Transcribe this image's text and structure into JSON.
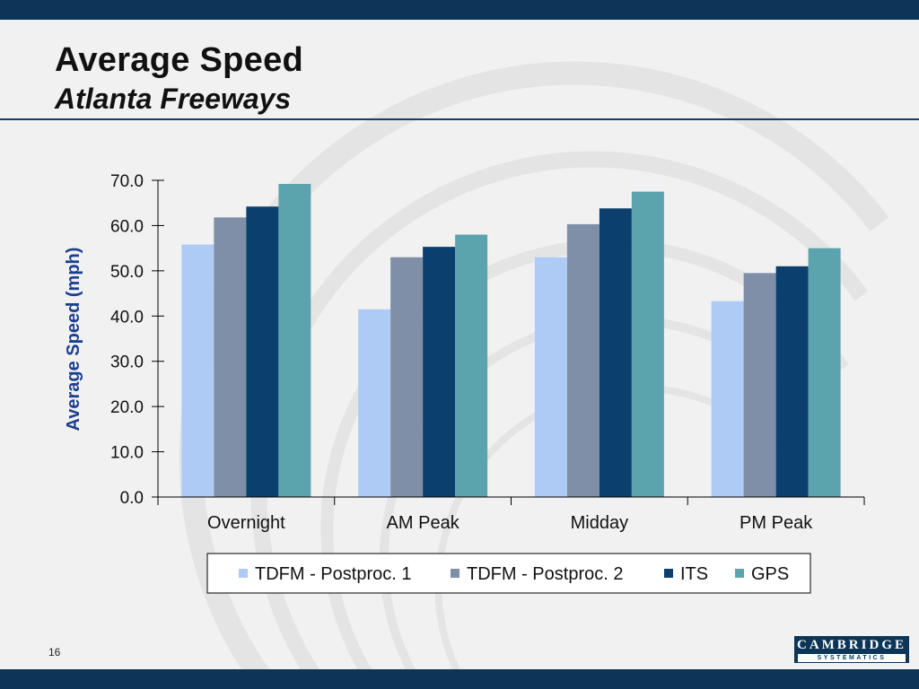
{
  "slide": {
    "title": "Average Speed",
    "subtitle": "Atlanta Freeways",
    "page_number": "16"
  },
  "logo": {
    "name": "CAMBRIDGE",
    "tagline": "SYSTEMATICS"
  },
  "colors": {
    "band": "#0c3557",
    "accent_text": "#1b3f8f"
  },
  "chart_data": {
    "type": "bar",
    "title": "",
    "xlabel": "",
    "ylabel": "Average Speed (mph)",
    "ylim": [
      0,
      70
    ],
    "yticks": [
      "0.0",
      "10.0",
      "20.0",
      "30.0",
      "40.0",
      "50.0",
      "60.0",
      "70.0"
    ],
    "categories": [
      "Overnight",
      "AM Peak",
      "Midday",
      "PM Peak"
    ],
    "legend_position": "bottom",
    "series": [
      {
        "name": "TDFM - Postproc. 1",
        "color": "#aecbf5",
        "values": [
          55.8,
          41.5,
          53.0,
          43.3
        ]
      },
      {
        "name": "TDFM - Postproc. 2",
        "color": "#7f8fa8",
        "values": [
          61.8,
          53.0,
          60.3,
          49.5
        ]
      },
      {
        "name": "ITS",
        "color": "#0b3f6e",
        "values": [
          64.2,
          55.3,
          63.8,
          51.0
        ]
      },
      {
        "name": "GPS",
        "color": "#5ba3ad",
        "values": [
          69.2,
          58.0,
          67.5,
          55.0
        ]
      }
    ]
  }
}
